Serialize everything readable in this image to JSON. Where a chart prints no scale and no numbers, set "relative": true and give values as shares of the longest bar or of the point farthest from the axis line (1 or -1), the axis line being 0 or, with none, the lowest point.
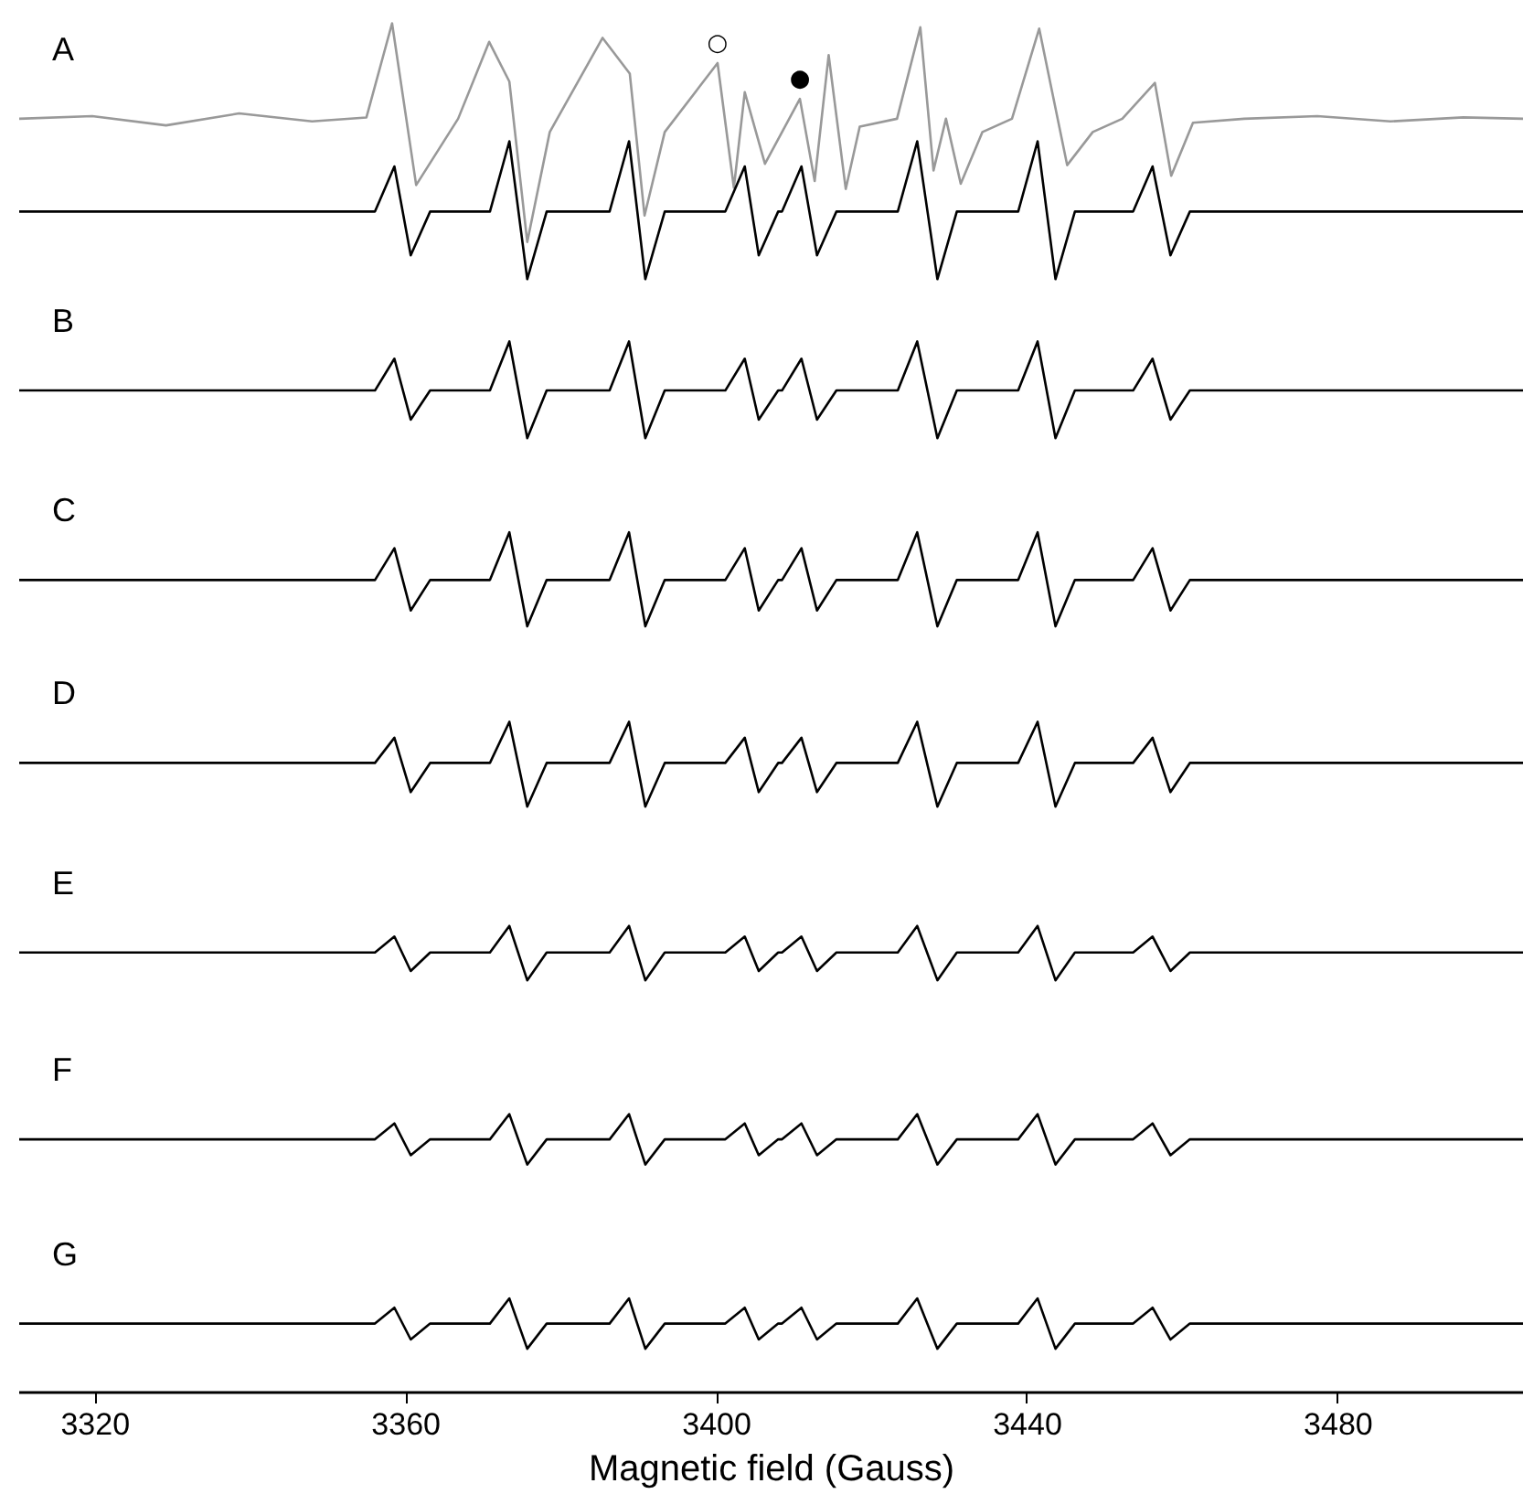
{
  "chart_data": {
    "type": "line",
    "relative": true,
    "xlim": [
      3310.2,
      3503.9
    ],
    "xlabel": "Magnetic field (Gauss)",
    "grid": false,
    "tick_labels": "x",
    "xticks": [
      3320,
      3360,
      3400,
      3440,
      3480
    ],
    "annotations": [
      {
        "text": "○",
        "x": 3400.1,
        "y": 0.97
      },
      {
        "text": "●",
        "x": 3410.7,
        "y": 0.943
      }
    ],
    "series": [
      {
        "name": "A",
        "color": "#999999",
        "x": [
          3310.2,
          3319.6,
          3329.1,
          3338.5,
          3347.9,
          3354.9,
          3358.2,
          3361.3,
          3366.7,
          3370.7,
          3373.3,
          3375.6,
          3378.5,
          3385.3,
          3388.8,
          3390.7,
          3393.3,
          3400.1,
          3402.2,
          3403.6,
          3406.2,
          3410.7,
          3412.6,
          3414.4,
          3416.6,
          3418.4,
          3423.2,
          3426.2,
          3427.9,
          3429.5,
          3431.4,
          3434.2,
          3438.0,
          3441.5,
          3445.1,
          3448.4,
          3452.2,
          3456.4,
          3458.5,
          3461.3,
          3467.9,
          3477.3,
          3486.7,
          3496.1,
          3503.9
        ],
        "values": [
          0.928,
          0.93,
          0.923,
          0.932,
          0.926,
          0.929,
          1.0,
          0.878,
          0.928,
          0.986,
          0.956,
          0.835,
          0.918,
          0.989,
          0.962,
          0.855,
          0.918,
          0.97,
          0.876,
          0.948,
          0.894,
          0.943,
          0.881,
          0.976,
          0.875,
          0.922,
          0.928,
          0.997,
          0.889,
          0.928,
          0.879,
          0.918,
          0.928,
          0.996,
          0.893,
          0.918,
          0.928,
          0.955,
          0.885,
          0.925,
          0.928,
          0.93,
          0.926,
          0.929,
          0.928
        ]
      },
      {
        "color": "#000000",
        "x": [
          3310.2,
          3356.0,
          3358.5,
          3360.6,
          3363.1,
          3370.8,
          3373.3,
          3375.6,
          3378.1,
          3386.2,
          3388.7,
          3390.8,
          3393.3,
          3401.1,
          3403.6,
          3405.4,
          3407.9,
          3408.4,
          3410.9,
          3412.9,
          3415.4,
          3423.3,
          3425.8,
          3428.4,
          3430.9,
          3438.8,
          3441.3,
          3443.6,
          3446.1,
          3453.6,
          3456.1,
          3458.4,
          3460.9,
          3503.9
        ],
        "values": [
          0.858,
          0.858,
          0.892,
          0.825,
          0.858,
          0.858,
          0.911,
          0.807,
          0.858,
          0.858,
          0.911,
          0.807,
          0.858,
          0.858,
          0.892,
          0.825,
          0.858,
          0.858,
          0.892,
          0.825,
          0.858,
          0.858,
          0.911,
          0.807,
          0.858,
          0.858,
          0.911,
          0.807,
          0.858,
          0.858,
          0.892,
          0.825,
          0.858,
          0.858
        ]
      },
      {
        "name": "B",
        "color": "#000000",
        "x": [
          3310.2,
          3356.0,
          3358.5,
          3360.6,
          3363.1,
          3370.8,
          3373.3,
          3375.6,
          3378.1,
          3386.2,
          3388.7,
          3390.8,
          3393.3,
          3401.1,
          3403.6,
          3405.4,
          3407.9,
          3408.4,
          3410.9,
          3412.9,
          3415.4,
          3423.3,
          3425.8,
          3428.4,
          3430.9,
          3438.8,
          3441.3,
          3443.6,
          3446.1,
          3453.6,
          3456.1,
          3458.4,
          3460.9,
          3503.9
        ],
        "values": [
          0.723,
          0.723,
          0.747,
          0.701,
          0.723,
          0.723,
          0.76,
          0.687,
          0.723,
          0.723,
          0.76,
          0.687,
          0.723,
          0.723,
          0.747,
          0.701,
          0.723,
          0.723,
          0.747,
          0.701,
          0.723,
          0.723,
          0.76,
          0.687,
          0.723,
          0.723,
          0.76,
          0.687,
          0.723,
          0.723,
          0.747,
          0.701,
          0.723,
          0.723
        ]
      },
      {
        "name": "C",
        "color": "#000000",
        "x": [
          3310.2,
          3356.0,
          3358.5,
          3360.6,
          3363.1,
          3370.8,
          3373.3,
          3375.6,
          3378.1,
          3386.2,
          3388.7,
          3390.8,
          3393.3,
          3401.1,
          3403.6,
          3405.4,
          3407.9,
          3408.4,
          3410.9,
          3412.9,
          3415.4,
          3423.3,
          3425.8,
          3428.4,
          3430.9,
          3438.8,
          3441.3,
          3443.6,
          3446.1,
          3453.6,
          3456.1,
          3458.4,
          3460.9,
          3503.9
        ],
        "values": [
          0.58,
          0.58,
          0.604,
          0.557,
          0.58,
          0.58,
          0.616,
          0.545,
          0.58,
          0.58,
          0.616,
          0.545,
          0.58,
          0.58,
          0.604,
          0.557,
          0.58,
          0.58,
          0.604,
          0.557,
          0.58,
          0.58,
          0.616,
          0.545,
          0.58,
          0.58,
          0.616,
          0.545,
          0.58,
          0.58,
          0.604,
          0.557,
          0.58,
          0.58
        ]
      },
      {
        "name": "D",
        "color": "#000000",
        "x": [
          3310.2,
          3356.0,
          3358.5,
          3360.6,
          3363.1,
          3370.8,
          3373.3,
          3375.6,
          3378.1,
          3386.2,
          3388.7,
          3390.8,
          3393.3,
          3401.1,
          3403.6,
          3405.4,
          3407.9,
          3408.4,
          3410.9,
          3412.9,
          3415.4,
          3423.3,
          3425.8,
          3428.4,
          3430.9,
          3438.8,
          3441.3,
          3443.6,
          3446.1,
          3453.6,
          3456.1,
          3458.4,
          3460.9,
          3503.9
        ],
        "values": [
          0.442,
          0.442,
          0.461,
          0.42,
          0.442,
          0.442,
          0.473,
          0.409,
          0.442,
          0.442,
          0.473,
          0.409,
          0.442,
          0.442,
          0.461,
          0.42,
          0.442,
          0.442,
          0.461,
          0.42,
          0.442,
          0.442,
          0.473,
          0.409,
          0.442,
          0.442,
          0.473,
          0.409,
          0.442,
          0.442,
          0.461,
          0.42,
          0.442,
          0.442
        ]
      },
      {
        "name": "E",
        "color": "#000000",
        "x": [
          3310.2,
          3356.0,
          3358.5,
          3360.6,
          3363.1,
          3370.8,
          3373.3,
          3375.6,
          3378.1,
          3386.2,
          3388.7,
          3390.8,
          3393.3,
          3401.1,
          3403.6,
          3405.4,
          3407.9,
          3408.4,
          3410.9,
          3412.9,
          3415.4,
          3423.3,
          3425.8,
          3428.4,
          3430.9,
          3438.8,
          3441.3,
          3443.6,
          3446.1,
          3453.6,
          3456.1,
          3458.4,
          3460.9,
          3503.9
        ],
        "values": [
          0.299,
          0.299,
          0.311,
          0.285,
          0.299,
          0.299,
          0.319,
          0.278,
          0.299,
          0.299,
          0.319,
          0.278,
          0.299,
          0.299,
          0.311,
          0.285,
          0.299,
          0.299,
          0.311,
          0.285,
          0.299,
          0.299,
          0.319,
          0.278,
          0.299,
          0.299,
          0.319,
          0.278,
          0.299,
          0.299,
          0.311,
          0.285,
          0.299,
          0.299
        ]
      },
      {
        "name": "F",
        "color": "#000000",
        "x": [
          3310.2,
          3356.0,
          3358.5,
          3360.6,
          3363.1,
          3370.8,
          3373.3,
          3375.6,
          3378.1,
          3386.2,
          3388.7,
          3390.8,
          3393.3,
          3401.1,
          3403.6,
          3405.4,
          3407.9,
          3408.4,
          3410.9,
          3412.9,
          3415.4,
          3423.3,
          3425.8,
          3428.4,
          3430.9,
          3438.8,
          3441.3,
          3443.6,
          3446.1,
          3453.6,
          3456.1,
          3458.4,
          3460.9,
          3503.9
        ],
        "values": [
          0.158,
          0.158,
          0.17,
          0.146,
          0.158,
          0.158,
          0.177,
          0.139,
          0.158,
          0.158,
          0.177,
          0.139,
          0.158,
          0.158,
          0.17,
          0.146,
          0.158,
          0.158,
          0.17,
          0.146,
          0.158,
          0.158,
          0.177,
          0.139,
          0.158,
          0.158,
          0.177,
          0.139,
          0.158,
          0.158,
          0.17,
          0.146,
          0.158,
          0.158
        ]
      },
      {
        "name": "G",
        "color": "#000000",
        "x": [
          3310.2,
          3356.0,
          3358.5,
          3360.6,
          3363.1,
          3370.8,
          3373.3,
          3375.6,
          3378.1,
          3386.2,
          3388.7,
          3390.8,
          3393.3,
          3401.1,
          3403.6,
          3405.4,
          3407.9,
          3408.4,
          3410.9,
          3412.9,
          3415.4,
          3423.3,
          3425.8,
          3428.4,
          3430.9,
          3438.8,
          3441.3,
          3443.6,
          3446.1,
          3453.6,
          3456.1,
          3458.4,
          3460.9,
          3503.9
        ],
        "values": [
          0.019,
          0.019,
          0.031,
          0.007,
          0.019,
          0.019,
          0.038,
          0.0,
          0.019,
          0.019,
          0.038,
          0.0,
          0.019,
          0.019,
          0.031,
          0.007,
          0.019,
          0.019,
          0.031,
          0.007,
          0.019,
          0.019,
          0.038,
          0.0,
          0.019,
          0.019,
          0.038,
          0.0,
          0.019,
          0.019,
          0.031,
          0.007,
          0.019,
          0.019
        ]
      }
    ]
  }
}
